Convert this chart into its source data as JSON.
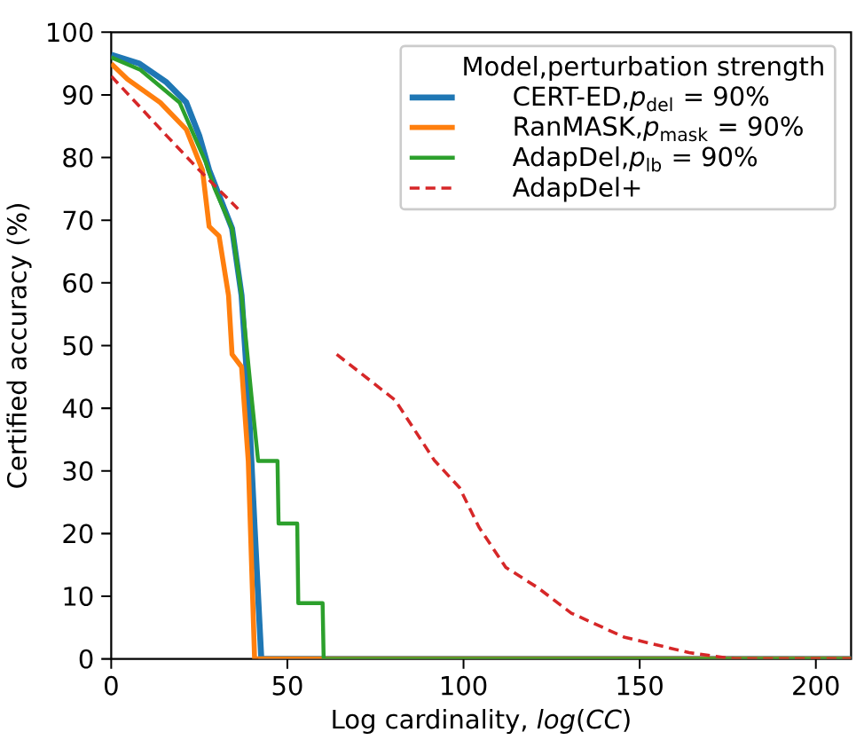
{
  "chart_data": {
    "type": "line",
    "xlabel": "Log cardinality, *log*(*CC*)",
    "ylabel": "Certified accuracy (%)",
    "legend_title": "Model,perturbation strength",
    "legend": "top right",
    "marker": "none",
    "xlim": [
      0,
      210
    ],
    "ylim": [
      0,
      100
    ],
    "xticks": [
      0,
      50,
      100,
      150,
      200
    ],
    "yticks": [
      0,
      10,
      20,
      30,
      40,
      50,
      60,
      70,
      80,
      90,
      100
    ],
    "series": [
      {
        "name": "CERT-ED,*p*$_{del}$ = 90%",
        "color": "#1f77b4",
        "line_style": "solid",
        "x": [
          0,
          8,
          15.7,
          21.3,
          25,
          27.8,
          30.6,
          34.3,
          37,
          38.9,
          40.7,
          42.6,
          210
        ],
        "values": [
          96.4,
          95,
          92,
          88.8,
          83.5,
          78,
          74,
          68.7,
          58,
          42,
          21,
          0,
          0
        ]
      },
      {
        "name": "RanMASK,*p*$_{mask}$ = 90%",
        "color": "#ff7f0e",
        "line_style": "solid",
        "x": [
          0,
          4.6,
          13.9,
          21.3,
          25.9,
          27.8,
          30.6,
          33.3,
          34.3,
          37,
          38.9,
          40.7,
          210
        ],
        "values": [
          95,
          92.5,
          88.8,
          84.5,
          78,
          69,
          67.5,
          58,
          48.6,
          46.6,
          31.6,
          0,
          0
        ]
      },
      {
        "name": "AdapDel,*p*$_{lb}$ = 90%",
        "color": "#2ca02c",
        "line_style": "solid",
        "x": [
          0,
          8.3,
          19.4,
          26.8,
          29.4,
          34.3,
          37,
          39.8,
          41.7,
          47.2,
          47.5,
          52.8,
          53.1,
          60,
          60.3,
          210
        ],
        "values": [
          96,
          94,
          88.8,
          79.3,
          75,
          68.7,
          58,
          42,
          31.6,
          31.6,
          21.6,
          21.6,
          8.9,
          8.9,
          0,
          0
        ]
      },
      {
        "name": "AdapDel+",
        "color": "#d62728",
        "line_style": "dashed",
        "x": [
          0,
          8.3,
          15.7,
          25,
          36,
          50,
          64,
          80.6,
          91.7,
          98.9,
          104.4,
          112,
          121,
          130.6,
          145.5,
          164,
          177,
          210
        ],
        "values": [
          93,
          88,
          83.5,
          78,
          71.8,
          null,
          48.6,
          41.3,
          31.7,
          27.3,
          21,
          14.6,
          11.4,
          7.3,
          3.5,
          1,
          0,
          0
        ]
      }
    ]
  }
}
